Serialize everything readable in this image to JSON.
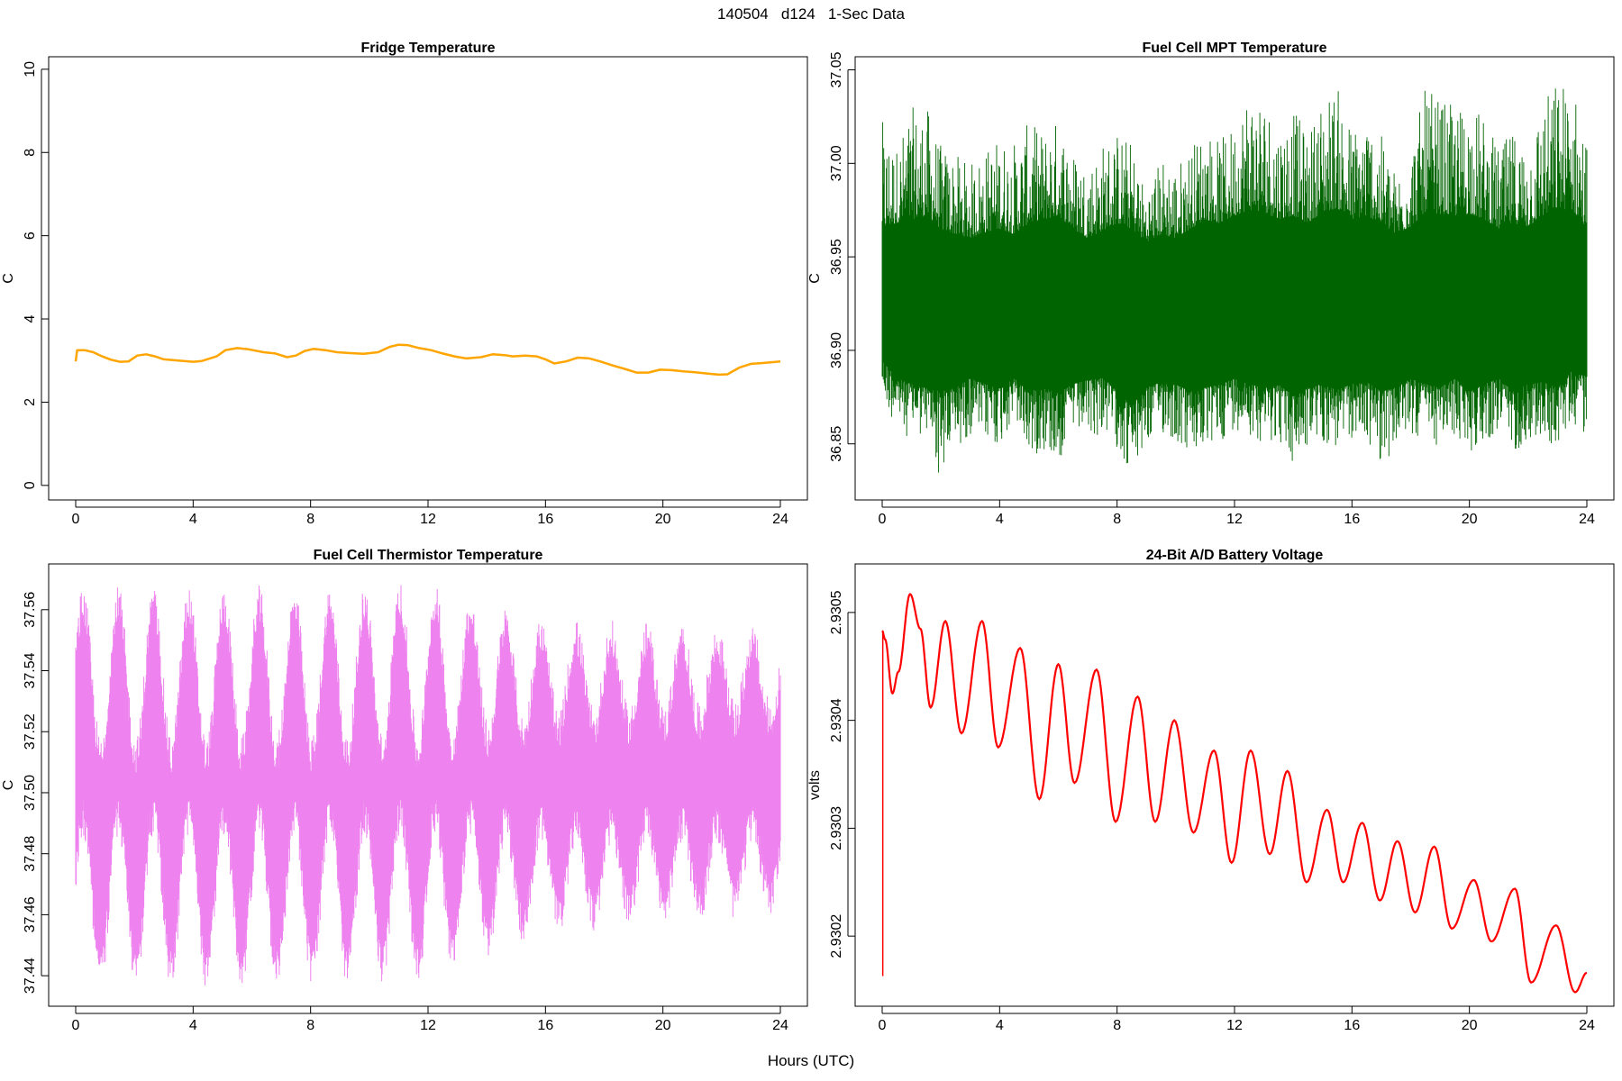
{
  "figure": {
    "title": "140504   d124   1-Sec Data",
    "xlabel": "Hours (UTC)"
  },
  "chart_data": [
    {
      "type": "line",
      "title": "Fridge Temperature",
      "ylabel": "C",
      "xlim": [
        0,
        24
      ],
      "ylim": [
        -0.35,
        10.3
      ],
      "xticks": [
        0,
        4,
        8,
        12,
        16,
        20,
        24
      ],
      "yticks": [
        0,
        2,
        4,
        6,
        8,
        10
      ],
      "color": "#ffa500",
      "band": false,
      "series": [
        {
          "x": [
            0,
            0.05,
            0.3,
            0.6,
            0.9,
            1.2,
            1.5,
            1.8,
            2.1,
            2.4,
            2.7,
            3.0,
            3.5,
            4.0,
            4.3,
            4.8,
            5.1,
            5.5,
            5.9,
            6.4,
            6.8,
            7.2,
            7.5,
            7.8,
            8.1,
            8.5,
            8.9,
            9.3,
            9.8,
            10.3,
            10.7,
            11.0,
            11.3,
            11.7,
            12.1,
            12.5,
            12.9,
            13.3,
            13.8,
            14.2,
            14.6,
            14.9,
            15.3,
            15.7,
            16.0,
            16.3,
            16.7,
            17.1,
            17.5,
            17.9,
            18.3,
            18.7,
            19.1,
            19.5,
            19.9,
            20.3,
            20.7,
            21.1,
            21.5,
            21.9,
            22.2,
            22.6,
            23.0,
            23.4,
            23.7,
            24.0
          ],
          "y": [
            2.98,
            3.25,
            3.25,
            3.2,
            3.1,
            3.02,
            2.97,
            2.98,
            3.12,
            3.15,
            3.1,
            3.03,
            3.0,
            2.97,
            2.99,
            3.1,
            3.25,
            3.3,
            3.27,
            3.2,
            3.17,
            3.08,
            3.12,
            3.23,
            3.28,
            3.25,
            3.2,
            3.18,
            3.16,
            3.2,
            3.33,
            3.38,
            3.37,
            3.3,
            3.25,
            3.17,
            3.1,
            3.05,
            3.08,
            3.15,
            3.13,
            3.1,
            3.12,
            3.1,
            3.03,
            2.93,
            2.98,
            3.07,
            3.05,
            2.97,
            2.88,
            2.8,
            2.71,
            2.71,
            2.78,
            2.77,
            2.74,
            2.72,
            2.69,
            2.66,
            2.67,
            2.83,
            2.92,
            2.94,
            2.96,
            2.98
          ]
        }
      ]
    },
    {
      "type": "line",
      "title": "Fuel Cell MPT Temperature",
      "ylabel": "C",
      "xlim": [
        0,
        24
      ],
      "ylim": [
        36.82,
        37.057
      ],
      "xticks": [
        0,
        4,
        8,
        12,
        16,
        20,
        24
      ],
      "yticks": [
        36.85,
        36.9,
        36.95,
        37.0,
        37.05
      ],
      "color": "#006400",
      "band": true,
      "series": [
        {
          "x": [
            0,
            0.5,
            1,
            1.5,
            2,
            2.5,
            3,
            3.5,
            4,
            4.5,
            5,
            5.5,
            6,
            6.5,
            7,
            7.5,
            8,
            8.5,
            9,
            9.5,
            10,
            10.5,
            11,
            11.5,
            12,
            12.5,
            13,
            13.5,
            14,
            14.5,
            15,
            15.5,
            16,
            16.5,
            17,
            17.5,
            18,
            18.5,
            19,
            19.5,
            20,
            20.5,
            21,
            21.5,
            22,
            22.5,
            23,
            23.5,
            24
          ],
          "y_low": [
            36.872,
            36.858,
            36.852,
            36.855,
            36.828,
            36.845,
            36.855,
            36.85,
            36.848,
            36.862,
            36.842,
            36.846,
            36.838,
            36.855,
            36.85,
            36.855,
            36.848,
            36.83,
            36.848,
            36.855,
            36.85,
            36.842,
            36.845,
            36.85,
            36.858,
            36.855,
            36.85,
            36.852,
            36.835,
            36.848,
            36.85,
            36.845,
            36.852,
            36.85,
            36.84,
            36.845,
            36.855,
            36.85,
            36.848,
            36.852,
            36.845,
            36.85,
            36.855,
            36.845,
            36.852,
            36.85,
            36.848,
            36.862,
            36.852
          ],
          "y_high": [
            37.023,
            37.01,
            37.03,
            37.032,
            37.01,
            37.005,
            37.0,
            37.008,
            37.015,
            37.012,
            37.022,
            37.018,
            37.025,
            37.008,
            37.0,
            37.012,
            37.018,
            37.012,
            36.985,
            37.005,
            37.0,
            37.01,
            37.02,
            37.012,
            37.022,
            37.045,
            37.038,
            37.022,
            37.03,
            37.015,
            37.038,
            37.042,
            37.02,
            37.028,
            37.015,
            36.995,
            37.01,
            37.04,
            37.035,
            37.03,
            37.035,
            37.025,
            37.008,
            37.018,
            37.012,
            37.035,
            37.046,
            37.045,
            37.015
          ],
          "core_low": [
            36.895,
            36.885,
            36.882,
            36.88,
            36.878,
            36.88,
            36.885,
            36.882,
            36.88,
            36.885,
            36.878,
            36.88,
            36.877,
            36.882,
            36.884,
            36.886,
            36.878,
            36.87,
            36.88,
            36.883,
            36.882,
            36.878,
            36.88,
            36.882,
            36.885,
            36.882,
            36.88,
            36.882,
            36.876,
            36.88,
            36.882,
            36.879,
            36.882,
            36.883,
            36.878,
            36.88,
            36.885,
            36.882,
            36.88,
            36.885,
            36.878,
            36.882,
            36.885,
            36.878,
            36.882,
            36.883,
            36.88,
            36.889,
            36.886
          ],
          "core_high": [
            36.965,
            36.968,
            36.97,
            36.972,
            36.965,
            36.962,
            36.96,
            36.963,
            36.965,
            36.962,
            36.968,
            36.97,
            36.972,
            36.965,
            36.96,
            36.964,
            36.968,
            36.965,
            36.958,
            36.962,
            36.96,
            36.965,
            36.97,
            36.968,
            36.972,
            36.975,
            36.974,
            36.97,
            36.972,
            36.968,
            36.974,
            36.976,
            36.97,
            36.972,
            36.968,
            36.962,
            36.966,
            36.974,
            36.973,
            36.972,
            36.973,
            36.97,
            36.965,
            36.968,
            36.966,
            36.972,
            36.976,
            36.975,
            36.965
          ]
        }
      ]
    },
    {
      "type": "line",
      "title": "Fuel Cell Thermistor Temperature",
      "ylabel": "C",
      "xlim": [
        0,
        24
      ],
      "ylim": [
        37.43,
        37.575
      ],
      "xticks": [
        0,
        4,
        8,
        12,
        16,
        20,
        24
      ],
      "yticks": [
        37.44,
        37.46,
        37.48,
        37.5,
        37.52,
        37.54,
        37.56
      ],
      "color": "#ee82ee",
      "band": true,
      "oscillation": {
        "period_hours": 1.2,
        "phase_peak_hours": 1.45,
        "center": [
          [
            0,
            37.502
          ],
          [
            8,
            37.502
          ],
          [
            16,
            37.505
          ],
          [
            24,
            37.507
          ]
        ],
        "amplitude": [
          [
            0,
            0.045
          ],
          [
            12,
            0.045
          ],
          [
            16,
            0.028
          ],
          [
            24,
            0.022
          ]
        ],
        "noise": 0.012
      },
      "series": [
        {
          "x": [
            0,
            24
          ]
        }
      ]
    },
    {
      "type": "line",
      "title": "24-Bit A/D Battery Voltage",
      "ylabel": "volts",
      "xlim": [
        0,
        24
      ],
      "ylim": [
        2.930135,
        2.930545
      ],
      "xticks": [
        0,
        4,
        8,
        12,
        16,
        20,
        24
      ],
      "yticks": [
        2.9302,
        2.9303,
        2.9304,
        2.9305
      ],
      "ytick_labels": [
        "2.9302",
        "2.9303",
        "2.9304",
        "2.9305"
      ],
      "color": "#ff0000",
      "band": false,
      "spike": {
        "x": 0.02,
        "y": 2.930163
      },
      "series": [
        {
          "x": [
            0,
            0.1,
            0.35,
            0.55,
            0.95,
            1.3,
            1.65,
            2.15,
            2.7,
            3.4,
            3.95,
            4.7,
            5.35,
            6.0,
            6.55,
            7.3,
            7.95,
            8.7,
            9.3,
            9.95,
            10.6,
            11.3,
            11.9,
            12.55,
            13.2,
            13.8,
            14.45,
            15.15,
            15.7,
            16.35,
            16.95,
            17.55,
            18.15,
            18.8,
            19.4,
            20.15,
            20.75,
            21.55,
            22.1,
            22.95,
            23.6,
            24.0
          ],
          "y": [
            2.930483,
            2.930475,
            2.930425,
            2.930445,
            2.930517,
            2.930485,
            2.930412,
            2.930492,
            2.930388,
            2.930492,
            2.930375,
            2.930467,
            2.930327,
            2.930452,
            2.930342,
            2.930447,
            2.930306,
            2.930422,
            2.930306,
            2.9304,
            2.930296,
            2.930372,
            2.930268,
            2.930372,
            2.930276,
            2.930353,
            2.93025,
            2.930317,
            2.93025,
            2.930305,
            2.930233,
            2.930288,
            2.930222,
            2.930283,
            2.930207,
            2.930252,
            2.930195,
            2.930244,
            2.930157,
            2.93021,
            2.930148,
            2.930166
          ]
        }
      ]
    }
  ]
}
